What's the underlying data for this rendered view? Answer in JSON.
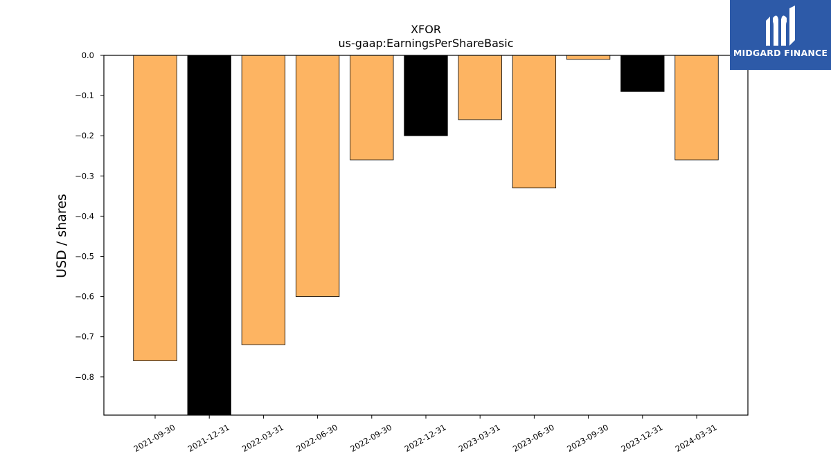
{
  "chart_data": {
    "type": "bar",
    "title": "XFOR",
    "subtitle": "us-gaap:EarningsPerShareBasic",
    "xlabel": "",
    "ylabel": "USD / shares",
    "categories": [
      "2021-09-30",
      "2021-12-31",
      "2022-03-31",
      "2022-06-30",
      "2022-09-30",
      "2022-12-31",
      "2023-03-31",
      "2023-06-30",
      "2023-09-30",
      "2023-12-31",
      "2024-03-31"
    ],
    "values": [
      -0.76,
      -0.9,
      -0.72,
      -0.6,
      -0.26,
      -0.2,
      -0.16,
      -0.33,
      -0.01,
      -0.09,
      -0.26
    ],
    "bar_colors": [
      "#fdb462",
      "#000000",
      "#fdb462",
      "#fdb462",
      "#fdb462",
      "#000000",
      "#fdb462",
      "#fdb462",
      "#fdb462",
      "#000000",
      "#fdb462"
    ],
    "edge_color": "#000000",
    "ylim": [
      -0.895,
      0.0
    ],
    "yticks": [
      0.0,
      -0.1,
      -0.2,
      -0.3,
      -0.4,
      -0.5,
      -0.6,
      -0.7,
      -0.8
    ],
    "ytick_labels": [
      "0.0",
      "−0.1",
      "−0.2",
      "−0.3",
      "−0.4",
      "−0.5",
      "−0.6",
      "−0.7",
      "−0.8"
    ],
    "grid": false,
    "legend": "none"
  },
  "logo": {
    "text": "MIDGARD FINANCE",
    "icon": "midgard-logo-icon",
    "background": "#2d5aa8"
  }
}
